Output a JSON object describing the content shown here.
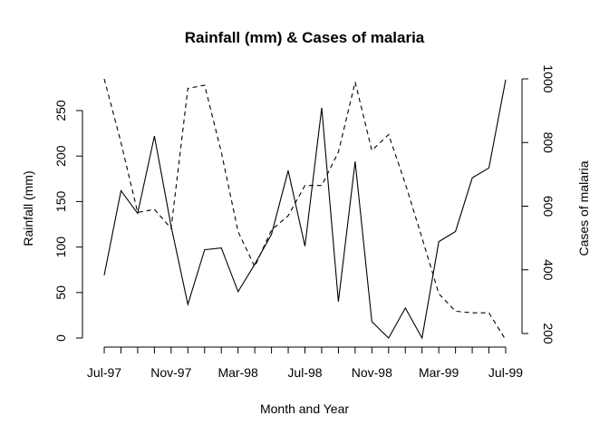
{
  "chart_data": {
    "type": "line",
    "title": "Rainfall (mm) & Cases of malaria",
    "xlabel": "Month and Year",
    "ylabel": "Rainfall (mm)",
    "y2label": "Cases of malaria",
    "x_tick_labels": [
      "Jul-97",
      "Nov-97",
      "Mar-98",
      "Jul-98",
      "Nov-98",
      "Mar-99",
      "Jul-99"
    ],
    "ylim": [
      0,
      250
    ],
    "y2lim": [
      200,
      1000
    ],
    "y_ticks": [
      0,
      50,
      100,
      150,
      200,
      250
    ],
    "y2_ticks": [
      200,
      400,
      600,
      800,
      1000
    ],
    "grid": false,
    "legend": "none",
    "series": [
      {
        "axis": "left",
        "linestyle": "solid",
        "color": "#000000",
        "values": [
          69,
          162,
          137,
          222,
          123,
          37,
          97,
          99,
          51,
          81,
          114,
          184,
          101,
          253,
          40,
          194,
          18,
          0,
          33,
          0,
          106,
          117,
          176,
          187,
          284
        ]
      },
      {
        "axis": "right",
        "linestyle": "dashed",
        "color": "#000000",
        "values": [
          1000,
          800,
          580,
          590,
          530,
          970,
          980,
          770,
          520,
          410,
          525,
          570,
          665,
          665,
          770,
          990,
          775,
          825,
          670,
          500,
          325,
          270,
          265,
          265,
          180
        ]
      }
    ]
  }
}
